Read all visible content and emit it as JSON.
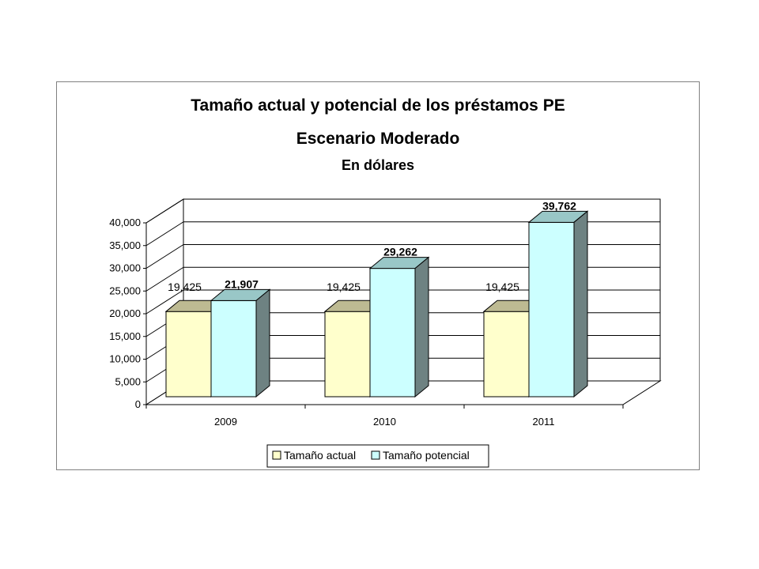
{
  "chart_data": {
    "type": "bar",
    "title": "Tamaño actual y potencial de los préstamos PE",
    "subtitle": "Escenario Moderado",
    "subtitle2": "En dólares",
    "categories": [
      "2009",
      "2010",
      "2011"
    ],
    "series": [
      {
        "name": "Tamaño actual",
        "values": [
          19425,
          19425,
          19425
        ],
        "labels": [
          "19,425",
          "19,425",
          "19,425"
        ],
        "color": "#FFFFCC"
      },
      {
        "name": "Tamaño potencial",
        "values": [
          21907,
          29262,
          39762
        ],
        "labels": [
          "21,907",
          "29,262",
          "39,762"
        ],
        "color": "#CCFFFF"
      }
    ],
    "ylim": [
      0,
      40000
    ],
    "yticks": [
      "0",
      "5,000",
      "10,000",
      "15,000",
      "20,000",
      "25,000",
      "30,000",
      "35,000",
      "40,000"
    ],
    "ytick_values": [
      0,
      5000,
      10000,
      15000,
      20000,
      25000,
      30000,
      35000,
      40000
    ],
    "grid": true,
    "legend_position": "bottom",
    "style": "3d-clustered-column"
  }
}
